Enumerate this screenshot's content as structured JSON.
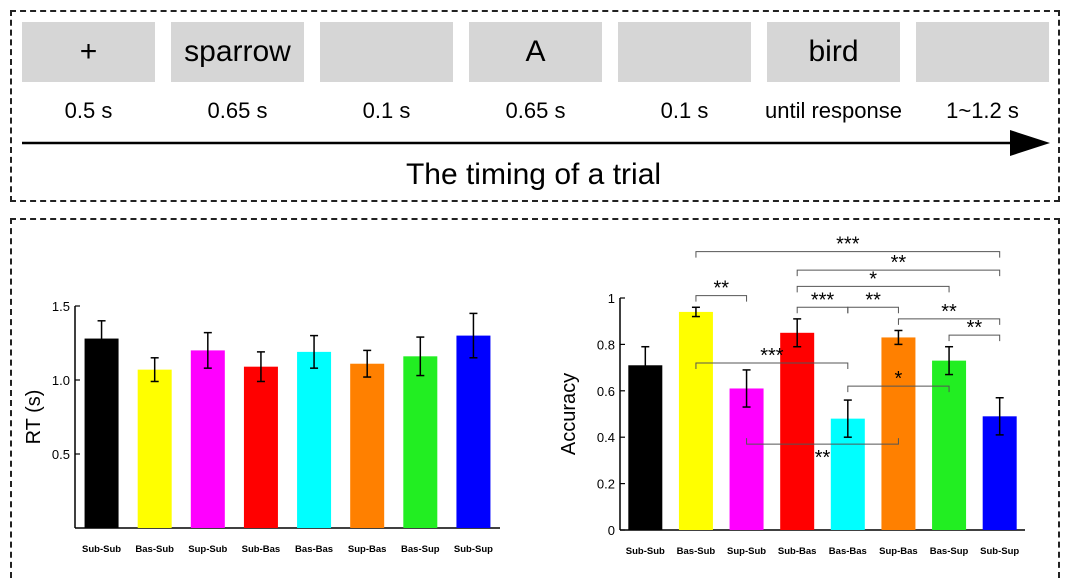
{
  "timeline": {
    "steps": [
      {
        "label": "+",
        "duration": "0.5 s"
      },
      {
        "label": "sparrow",
        "duration": "0.65 s"
      },
      {
        "label": "",
        "duration": "0.1 s"
      },
      {
        "label": "A",
        "duration": "0.65 s"
      },
      {
        "label": "",
        "duration": "0.1 s"
      },
      {
        "label": "bird",
        "duration": "until response"
      },
      {
        "label": "",
        "duration": "1~1.2 s"
      }
    ],
    "caption": "The timing of a trial"
  },
  "chart_data": [
    {
      "type": "bar",
      "categories": [
        "Sub-Sub",
        "Bas-Sub",
        "Sup-Sub",
        "Sub-Bas",
        "Bas-Bas",
        "Sup-Bas",
        "Bas-Sup",
        "Sub-Sup"
      ],
      "values": [
        1.28,
        1.07,
        1.2,
        1.09,
        1.19,
        1.11,
        1.16,
        1.3
      ],
      "errors": [
        0.12,
        0.08,
        0.12,
        0.1,
        0.11,
        0.09,
        0.13,
        0.15
      ],
      "colors": [
        "#000000",
        "#ffff00",
        "#ff00ff",
        "#ff0000",
        "#00ffff",
        "#ff8000",
        "#22ee22",
        "#0000ff"
      ],
      "xlabel": "",
      "ylabel": "RT (s)",
      "ylim": [
        0,
        1.5
      ],
      "yticks": [
        "0.5",
        "1.0",
        "1.5"
      ],
      "ytick_values": [
        0.5,
        1.0,
        1.5
      ]
    },
    {
      "type": "bar",
      "categories": [
        "Sub-Sub",
        "Bas-Sub",
        "Sup-Sub",
        "Sub-Bas",
        "Bas-Bas",
        "Sup-Bas",
        "Bas-Sup",
        "Sub-Sup"
      ],
      "values": [
        0.71,
        0.94,
        0.61,
        0.85,
        0.48,
        0.83,
        0.73,
        0.49
      ],
      "errors": [
        0.08,
        0.02,
        0.08,
        0.06,
        0.08,
        0.03,
        0.06,
        0.08
      ],
      "colors": [
        "#000000",
        "#ffff00",
        "#ff00ff",
        "#ff0000",
        "#00ffff",
        "#ff8000",
        "#22ee22",
        "#0000ff"
      ],
      "xlabel": "",
      "ylabel": "Accuracy",
      "ylim": [
        0,
        1
      ],
      "yticks": [
        "0",
        "0.2",
        "0.4",
        "0.6",
        "0.8",
        "1"
      ],
      "ytick_values": [
        0,
        0.2,
        0.4,
        0.6,
        0.8,
        1
      ],
      "significance": [
        {
          "from": "Bas-Sub",
          "to": "Sub-Sup",
          "label": "***",
          "level": 1.2
        },
        {
          "from": "Sub-Bas",
          "to": "Sub-Sup",
          "label": "**",
          "level": 1.12
        },
        {
          "from": "Sub-Bas",
          "to": "Bas-Sup",
          "label": "*",
          "level": 1.05
        },
        {
          "from": "Bas-Sub",
          "to": "Sup-Sub",
          "label": "**",
          "level": 1.01
        },
        {
          "from": "Sub-Bas",
          "to": "Bas-Bas",
          "label": "***",
          "level": 0.96
        },
        {
          "from": "Bas-Bas",
          "to": "Sup-Bas",
          "label": "**",
          "level": 0.96
        },
        {
          "from": "Sup-Bas",
          "to": "Sub-Sup",
          "label": "**",
          "level": 0.91
        },
        {
          "from": "Bas-Sup",
          "to": "Sub-Sup",
          "label": "**",
          "level": 0.84
        },
        {
          "from": "Bas-Sub",
          "to": "Bas-Bas",
          "label": "***",
          "level": 0.72
        },
        {
          "from": "Bas-Bas",
          "to": "Bas-Sup",
          "label": "*",
          "level": 0.62
        },
        {
          "from": "Sup-Sub",
          "to": "Sup-Bas",
          "label": "**",
          "level": 0.37,
          "down": true
        }
      ]
    }
  ]
}
